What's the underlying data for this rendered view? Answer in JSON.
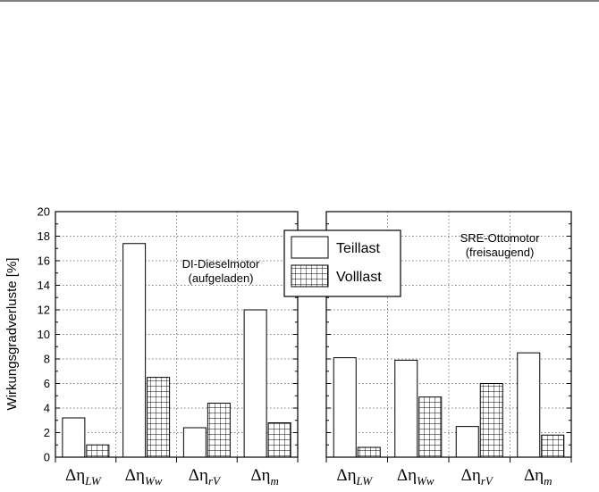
{
  "chart_data": {
    "type": "bar",
    "ylabel": "Wirkungsgradverluste [%]",
    "ylim": [
      0,
      20
    ],
    "yticks": [
      0,
      2,
      4,
      6,
      8,
      10,
      12,
      14,
      16,
      18,
      20
    ],
    "grid": true,
    "legend_position": "top-center",
    "legend": [
      {
        "name": "Teillast",
        "pattern": "none"
      },
      {
        "name": "Volllast",
        "pattern": "grid-hatch"
      }
    ],
    "categories": [
      {
        "symbol": "Δη",
        "sub": "LW"
      },
      {
        "symbol": "Δη",
        "sub": "Ww"
      },
      {
        "symbol": "Δη",
        "sub": "rV"
      },
      {
        "symbol": "Δη",
        "sub": "m"
      }
    ],
    "panels": [
      {
        "annotation_lines": [
          "DI-Dieselmotor",
          "(aufgeladen)"
        ],
        "series": [
          {
            "name": "Teillast",
            "values": [
              3.2,
              17.4,
              2.4,
              12.0
            ]
          },
          {
            "name": "Volllast",
            "values": [
              1.0,
              6.5,
              4.4,
              2.8
            ]
          }
        ]
      },
      {
        "annotation_lines": [
          "SRE-Ottomotor",
          "(freisaugend)"
        ],
        "series": [
          {
            "name": "Teillast",
            "values": [
              8.1,
              7.9,
              2.5,
              8.5
            ]
          },
          {
            "name": "Volllast",
            "values": [
              0.8,
              4.9,
              6.0,
              1.8
            ]
          }
        ]
      }
    ]
  }
}
